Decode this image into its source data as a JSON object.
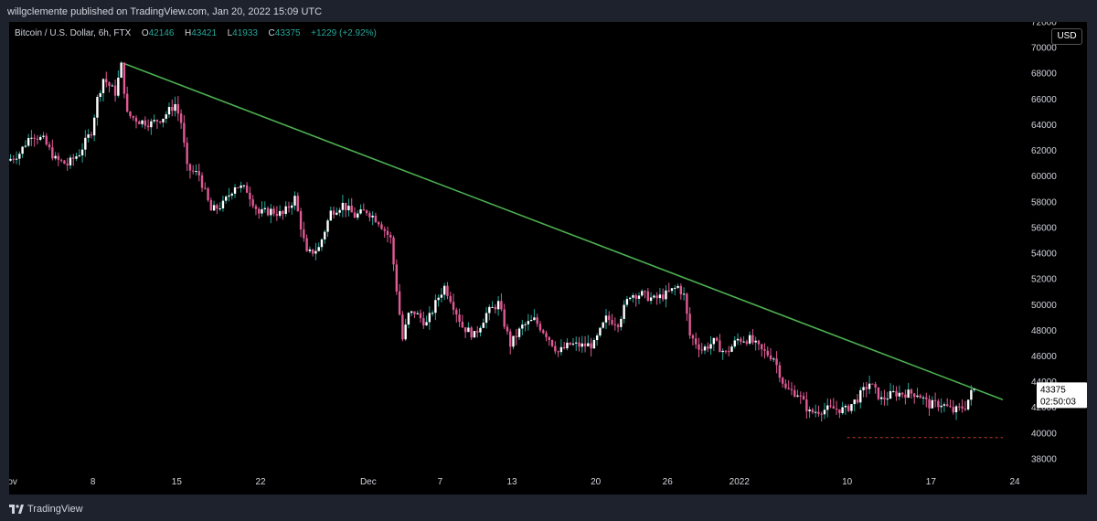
{
  "header": {
    "publisher_line": "willgclemente published on TradingView.com, Jan 20, 2022 15:09 UTC"
  },
  "legend": {
    "symbol": "Bitcoin / U.S. Dollar, 6h, FTX",
    "open_label": "O",
    "open": "42146",
    "high_label": "H",
    "high": "43421",
    "low_label": "L",
    "low": "41933",
    "close_label": "C",
    "close": "43375",
    "change": "+1229 (+2.92%)"
  },
  "currency_button": "USD",
  "price_tag": {
    "price": "43375",
    "countdown": "02:50:03"
  },
  "footer": {
    "logo_text": "TradingView"
  },
  "colors": {
    "up": "#26a69a",
    "up_body": "#ffffff",
    "down": "#e05a95",
    "trendline": "#4caf50",
    "background": "#000000",
    "axis_text": "#d1d4dc",
    "low_line": "#c0392b"
  },
  "chart_data": {
    "type": "candlestick",
    "title": "Bitcoin / U.S. Dollar, 6h, FTX",
    "x_axis": {
      "start": "2021-11-01",
      "end": "2022-01-24",
      "ticks": [
        {
          "date": "2021-11-01",
          "label": "Nov"
        },
        {
          "date": "2021-11-08",
          "label": "8"
        },
        {
          "date": "2021-11-15",
          "label": "15"
        },
        {
          "date": "2021-11-22",
          "label": "22"
        },
        {
          "date": "2021-12-01",
          "label": "Dec"
        },
        {
          "date": "2021-12-07",
          "label": "7"
        },
        {
          "date": "2021-12-13",
          "label": "13"
        },
        {
          "date": "2021-12-20",
          "label": "20"
        },
        {
          "date": "2021-12-26",
          "label": "26"
        },
        {
          "date": "2022-01-01",
          "label": "2022"
        },
        {
          "date": "2022-01-10",
          "label": "10"
        },
        {
          "date": "2022-01-17",
          "label": "17"
        },
        {
          "date": "2022-01-24",
          "label": "24"
        }
      ]
    },
    "y_axis": {
      "min": 37000,
      "max": 72000,
      "ticks": [
        38000,
        40000,
        42000,
        44000,
        46000,
        48000,
        50000,
        52000,
        54000,
        56000,
        58000,
        60000,
        62000,
        64000,
        66000,
        68000,
        70000,
        72000
      ]
    },
    "price_path": [
      [
        "2021-11-01",
        61200
      ],
      [
        "2021-11-02",
        61800
      ],
      [
        "2021-11-03",
        63300
      ],
      [
        "2021-11-04",
        62800
      ],
      [
        "2021-11-05",
        61300
      ],
      [
        "2021-11-06",
        60900
      ],
      [
        "2021-11-07",
        61800
      ],
      [
        "2021-11-08",
        63500
      ],
      [
        "2021-11-08T12",
        66000
      ],
      [
        "2021-11-09",
        67600
      ],
      [
        "2021-11-10",
        66500
      ],
      [
        "2021-11-10T12",
        68600
      ],
      [
        "2021-11-11",
        64800
      ],
      [
        "2021-11-12",
        64300
      ],
      [
        "2021-11-13",
        64100
      ],
      [
        "2021-11-14",
        64600
      ],
      [
        "2021-11-15",
        65600
      ],
      [
        "2021-11-15T12",
        64200
      ],
      [
        "2021-11-16",
        60600
      ],
      [
        "2021-11-17",
        60100
      ],
      [
        "2021-11-18",
        57300
      ],
      [
        "2021-11-19",
        57800
      ],
      [
        "2021-11-20",
        59300
      ],
      [
        "2021-11-21",
        58900
      ],
      [
        "2021-11-22",
        57100
      ],
      [
        "2021-11-23",
        57300
      ],
      [
        "2021-11-24",
        57000
      ],
      [
        "2021-11-25",
        58300
      ],
      [
        "2021-11-26",
        53900
      ],
      [
        "2021-11-27",
        54400
      ],
      [
        "2021-11-28",
        57200
      ],
      [
        "2021-11-29",
        57800
      ],
      [
        "2021-11-30",
        56900
      ],
      [
        "2021-12-01",
        57300
      ],
      [
        "2021-12-02",
        56500
      ],
      [
        "2021-12-03",
        55100
      ],
      [
        "2021-12-04",
        47300
      ],
      [
        "2021-12-04T12",
        49200
      ],
      [
        "2021-12-05",
        49400
      ],
      [
        "2021-12-06",
        48500
      ],
      [
        "2021-12-07",
        50600
      ],
      [
        "2021-12-07T12",
        51400
      ],
      [
        "2021-12-08",
        50500
      ],
      [
        "2021-12-09",
        48300
      ],
      [
        "2021-12-10",
        47600
      ],
      [
        "2021-12-11",
        49300
      ],
      [
        "2021-12-12",
        50100
      ],
      [
        "2021-12-13",
        46900
      ],
      [
        "2021-12-14",
        48300
      ],
      [
        "2021-12-15",
        48800
      ],
      [
        "2021-12-16",
        47700
      ],
      [
        "2021-12-17",
        46300
      ],
      [
        "2021-12-18",
        46900
      ],
      [
        "2021-12-19",
        46800
      ],
      [
        "2021-12-20",
        46900
      ],
      [
        "2021-12-21",
        48900
      ],
      [
        "2021-12-22",
        48600
      ],
      [
        "2021-12-23",
        50800
      ],
      [
        "2021-12-24",
        50800
      ],
      [
        "2021-12-25",
        50400
      ],
      [
        "2021-12-26",
        50800
      ],
      [
        "2021-12-27",
        51400
      ],
      [
        "2021-12-27T12",
        50700
      ],
      [
        "2021-12-28",
        47600
      ],
      [
        "2021-12-29",
        46500
      ],
      [
        "2021-12-30",
        47100
      ],
      [
        "2021-12-31",
        46200
      ],
      [
        "2022-01-01",
        47300
      ],
      [
        "2022-01-02",
        47300
      ],
      [
        "2022-01-03",
        46400
      ],
      [
        "2022-01-04",
        45900
      ],
      [
        "2022-01-05",
        43400
      ],
      [
        "2022-01-06",
        43100
      ],
      [
        "2022-01-07",
        41600
      ],
      [
        "2022-01-08",
        41800
      ],
      [
        "2022-01-09",
        41900
      ],
      [
        "2022-01-10",
        41800
      ],
      [
        "2022-01-11",
        42700
      ],
      [
        "2022-01-12",
        43900
      ],
      [
        "2022-01-13",
        42600
      ],
      [
        "2022-01-14",
        43100
      ],
      [
        "2022-01-15",
        43100
      ],
      [
        "2022-01-16",
        43100
      ],
      [
        "2022-01-17",
        42200
      ],
      [
        "2022-01-18",
        42300
      ],
      [
        "2022-01-19",
        41700
      ],
      [
        "2022-01-20",
        42100
      ],
      [
        "2022-01-20T15",
        43375
      ]
    ],
    "trendline": {
      "from": [
        "2021-11-10T12",
        68800
      ],
      "to": [
        "2022-01-23",
        42600
      ]
    },
    "low_line": {
      "from": "2022-01-10",
      "to": "2022-01-23",
      "price": 39650
    },
    "last_price": 43375
  }
}
